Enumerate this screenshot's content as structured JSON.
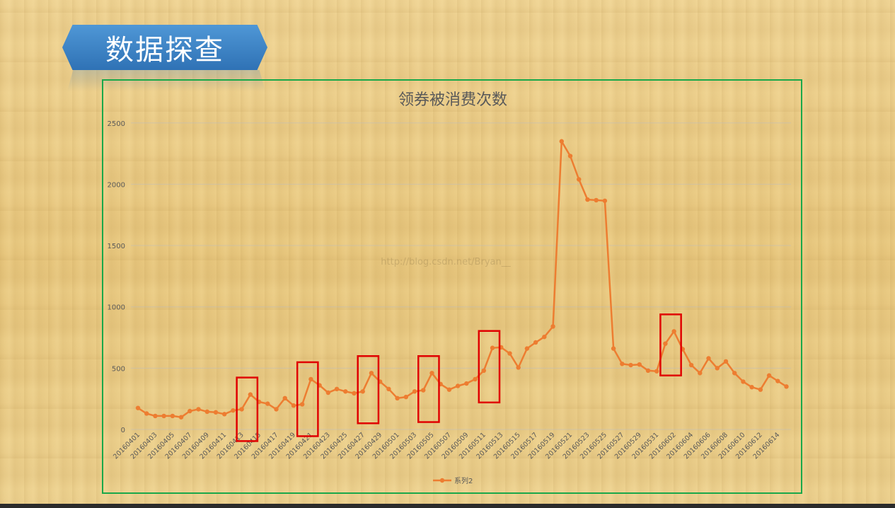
{
  "slide_title": "数据探查",
  "watermark": "http://blog.csdn.net/Bryan__",
  "colors": {
    "series": "#ed7d31",
    "frame": "#1aa84a",
    "highlight_box": "#e00000",
    "banner": "#3a7fc4"
  },
  "chart_data": {
    "type": "line",
    "title": "领券被消费次数",
    "xlabel": "",
    "ylabel": "",
    "ylim": [
      0,
      2500
    ],
    "yticks": [
      0,
      500,
      1000,
      1500,
      2000,
      2500
    ],
    "grid": "horizontal",
    "legend": "bottom",
    "x": [
      "20160401",
      "20160402",
      "20160403",
      "20160404",
      "20160405",
      "20160406",
      "20160407",
      "20160408",
      "20160409",
      "20160410",
      "20160411",
      "20160412",
      "20160413",
      "20160414",
      "20160415",
      "20160416",
      "20160417",
      "20160418",
      "20160419",
      "20160420",
      "20160421",
      "20160422",
      "20160423",
      "20160424",
      "20160425",
      "20160426",
      "20160427",
      "20160428",
      "20160429",
      "20160430",
      "20160501",
      "20160502",
      "20160503",
      "20160504",
      "20160505",
      "20160506",
      "20160507",
      "20160508",
      "20160509",
      "20160510",
      "20160511",
      "20160512",
      "20160513",
      "20160514",
      "20160515",
      "20160516",
      "20160517",
      "20160518",
      "20160519",
      "20160520",
      "20160521",
      "20160522",
      "20160523",
      "20160524",
      "20160525",
      "20160526",
      "20160527",
      "20160528",
      "20160529",
      "20160530",
      "20160531",
      "20160601",
      "20160602",
      "20160603",
      "20160604",
      "20160605",
      "20160606",
      "20160607",
      "20160608",
      "20160609",
      "20160610",
      "20160611",
      "20160612",
      "20160613",
      "20160614",
      "20160615"
    ],
    "x_tick_labels": [
      "20160401",
      "20160403",
      "20160405",
      "20160407",
      "20160409",
      "20160411",
      "20160413",
      "20160415",
      "20160417",
      "20160419",
      "20160421",
      "20160423",
      "20160425",
      "20160427",
      "20160429",
      "20160501",
      "20160503",
      "20160505",
      "20160507",
      "20160509",
      "20160511",
      "20160513",
      "20160515",
      "20160517",
      "20160519",
      "20160521",
      "20160523",
      "20160525",
      "20160527",
      "20160529",
      "20160531",
      "20160602",
      "20160604",
      "20160606",
      "20160608",
      "20160610",
      "20160612",
      "20160614"
    ],
    "series": [
      {
        "name": "系列2",
        "values": [
          175,
          130,
          110,
          110,
          110,
          100,
          150,
          165,
          145,
          140,
          125,
          155,
          165,
          285,
          225,
          210,
          165,
          255,
          195,
          205,
          410,
          360,
          300,
          330,
          310,
          295,
          310,
          460,
          390,
          330,
          255,
          265,
          310,
          320,
          460,
          370,
          325,
          355,
          375,
          410,
          480,
          665,
          670,
          620,
          505,
          660,
          710,
          755,
          840,
          2350,
          2230,
          2040,
          1875,
          1870,
          1865,
          660,
          535,
          525,
          530,
          480,
          475,
          700,
          800,
          655,
          525,
          460,
          580,
          500,
          555,
          460,
          390,
          345,
          325,
          440,
          395,
          350
        ]
      }
    ],
    "highlight_ranges": [
      {
        "from": "20160413",
        "to": "20160414"
      },
      {
        "from": "20160420",
        "to": "20160421"
      },
      {
        "from": "20160427",
        "to": "20160428"
      },
      {
        "from": "20160504",
        "to": "20160505"
      },
      {
        "from": "20160511",
        "to": "20160512"
      },
      {
        "from": "20160601",
        "to": "20160602"
      }
    ]
  }
}
